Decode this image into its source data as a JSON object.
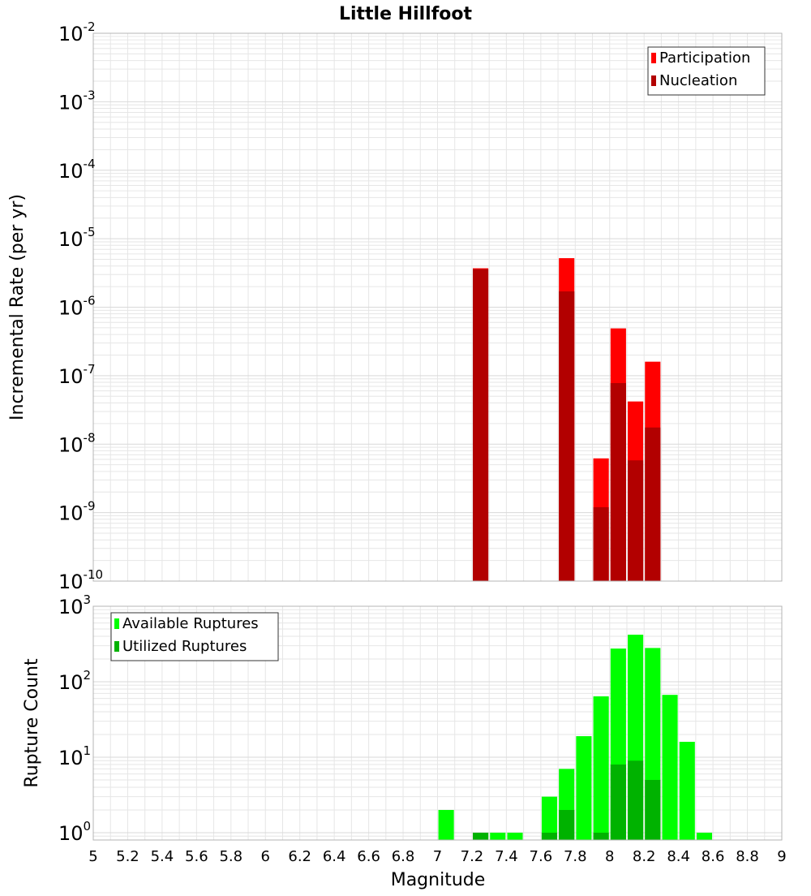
{
  "title": "Little Hillfoot",
  "xlabel": "Magnitude",
  "x_ticks": [
    "5",
    "5.2",
    "5.4",
    "5.6",
    "5.8",
    "6",
    "6.2",
    "6.4",
    "6.6",
    "6.8",
    "7",
    "7.2",
    "7.4",
    "7.6",
    "7.8",
    "8",
    "8.2",
    "8.4",
    "8.6",
    "8.8",
    "9"
  ],
  "colors": {
    "participation": "#ff0000",
    "nucleation": "#b20000",
    "available": "#00ff00",
    "utilized": "#00b200",
    "grid": "#e6e6e6",
    "frame": "#b4b4b4"
  },
  "chart_data": [
    {
      "type": "bar",
      "title": "Little Hillfoot",
      "xlabel": "",
      "ylabel": "Incremental Rate (per yr)",
      "xlim": [
        5,
        9
      ],
      "ylim": [
        1e-10,
        0.01
      ],
      "y_scale": "log",
      "bar_width": 0.09,
      "legend": {
        "placement": "top-right",
        "entries": [
          "Participation",
          "Nucleation"
        ]
      },
      "y_ticks": [
        {
          "value": 0.01,
          "exp": "-2"
        },
        {
          "value": 0.001,
          "exp": "-3"
        },
        {
          "value": 0.0001,
          "exp": "-4"
        },
        {
          "value": 1e-05,
          "exp": "-5"
        },
        {
          "value": 1e-06,
          "exp": "-6"
        },
        {
          "value": 1e-07,
          "exp": "-7"
        },
        {
          "value": 1e-08,
          "exp": "-8"
        },
        {
          "value": 1e-09,
          "exp": "-9"
        },
        {
          "value": 1e-10,
          "exp": "-10"
        }
      ],
      "series": [
        {
          "name": "Participation",
          "points": [
            {
              "x": 7.25,
              "y": 3.7e-06
            },
            {
              "x": 7.75,
              "y": 5.2e-06
            },
            {
              "x": 7.95,
              "y": 6.2e-09
            },
            {
              "x": 8.05,
              "y": 4.9e-07
            },
            {
              "x": 8.15,
              "y": 4.2e-08
            },
            {
              "x": 8.25,
              "y": 1.6e-07
            }
          ]
        },
        {
          "name": "Nucleation",
          "points": [
            {
              "x": 7.25,
              "y": 3.6e-06
            },
            {
              "x": 7.75,
              "y": 1.7e-06
            },
            {
              "x": 7.95,
              "y": 1.2e-09
            },
            {
              "x": 8.05,
              "y": 7.8e-08
            },
            {
              "x": 8.15,
              "y": 5.8e-09
            },
            {
              "x": 8.25,
              "y": 1.75e-08
            }
          ]
        }
      ]
    },
    {
      "type": "bar",
      "title": "",
      "xlabel": "Magnitude",
      "ylabel": "Rupture Count",
      "xlim": [
        5,
        9
      ],
      "ylim": [
        0.8,
        1000
      ],
      "y_scale": "log",
      "bar_width": 0.09,
      "legend": {
        "placement": "top-left",
        "entries": [
          "Available Ruptures",
          "Utilized Ruptures"
        ]
      },
      "y_ticks": [
        {
          "value": 1000,
          "exp": "3"
        },
        {
          "value": 100,
          "exp": "2"
        },
        {
          "value": 10,
          "exp": "1"
        },
        {
          "value": 1,
          "exp": "0"
        }
      ],
      "series": [
        {
          "name": "Available Ruptures",
          "points": [
            {
              "x": 7.05,
              "y": 2
            },
            {
              "x": 7.25,
              "y": 1
            },
            {
              "x": 7.35,
              "y": 1
            },
            {
              "x": 7.45,
              "y": 1
            },
            {
              "x": 7.65,
              "y": 3
            },
            {
              "x": 7.75,
              "y": 7
            },
            {
              "x": 7.85,
              "y": 19
            },
            {
              "x": 7.95,
              "y": 64
            },
            {
              "x": 8.05,
              "y": 275
            },
            {
              "x": 8.15,
              "y": 420
            },
            {
              "x": 8.25,
              "y": 280
            },
            {
              "x": 8.35,
              "y": 67
            },
            {
              "x": 8.45,
              "y": 16
            },
            {
              "x": 8.55,
              "y": 1
            }
          ]
        },
        {
          "name": "Utilized Ruptures",
          "points": [
            {
              "x": 7.25,
              "y": 1
            },
            {
              "x": 7.65,
              "y": 1
            },
            {
              "x": 7.75,
              "y": 2
            },
            {
              "x": 7.95,
              "y": 1
            },
            {
              "x": 8.05,
              "y": 8
            },
            {
              "x": 8.15,
              "y": 9
            },
            {
              "x": 8.25,
              "y": 5
            }
          ]
        }
      ]
    }
  ]
}
